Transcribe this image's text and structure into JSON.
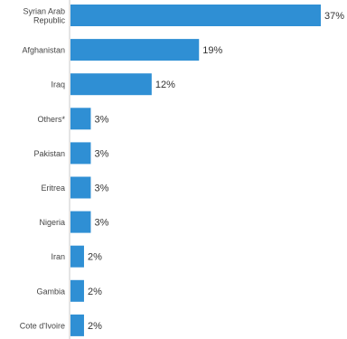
{
  "chart_data": {
    "type": "bar",
    "orientation": "horizontal",
    "categories": [
      "Syrian Arab Republic",
      "Afghanistan",
      "Iraq",
      "Others*",
      "Pakistan",
      "Eritrea",
      "Nigeria",
      "Iran",
      "Gambia",
      "Cote d'Ivoire"
    ],
    "category_lines": [
      [
        "Syrian Arab",
        "Republic"
      ],
      [
        "Afghanistan"
      ],
      [
        "Iraq"
      ],
      [
        "Others*"
      ],
      [
        "Pakistan"
      ],
      [
        "Eritrea"
      ],
      [
        "Nigeria"
      ],
      [
        "Iran"
      ],
      [
        "Gambia"
      ],
      [
        "Cote d'Ivoire"
      ]
    ],
    "values": [
      37,
      19,
      12,
      3,
      3,
      3,
      3,
      2,
      2,
      2
    ],
    "labels": [
      "37%",
      "19%",
      "12%",
      "3%",
      "3%",
      "3%",
      "3%",
      "2%",
      "2%",
      "2%"
    ],
    "xlim": [
      0,
      37
    ],
    "grid": false,
    "bar_color": "#2f8fd4"
  }
}
